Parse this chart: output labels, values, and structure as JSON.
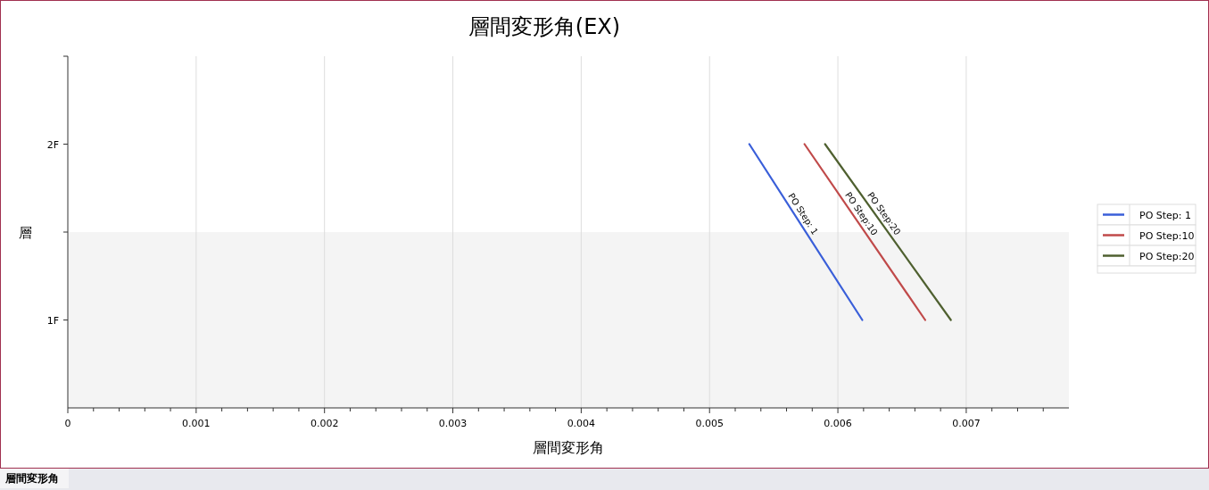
{
  "chart_data": {
    "type": "line",
    "title": "層間変形角(EX)",
    "xlabel": "層間変形角",
    "ylabel": "層",
    "xlim": [
      0,
      0.0078
    ],
    "xticks": [
      0,
      {
        "value": 0.0002,
        "label": null
      },
      {
        "value": 0.0004,
        "label": null
      },
      {
        "value": 0.0006,
        "label": null
      },
      {
        "value": 0.0008,
        "label": null
      },
      0.001,
      {
        "value": 0.0012,
        "label": null
      },
      {
        "value": 0.0014,
        "label": null
      },
      {
        "value": 0.0016,
        "label": null
      },
      {
        "value": 0.0018,
        "label": null
      },
      0.002,
      {
        "value": 0.0022,
        "label": null
      },
      {
        "value": 0.0024,
        "label": null
      },
      {
        "value": 0.0026,
        "label": null
      },
      {
        "value": 0.0028,
        "label": null
      },
      0.003,
      {
        "value": 0.0032,
        "label": null
      },
      {
        "value": 0.0034,
        "label": null
      },
      {
        "value": 0.0036,
        "label": null
      },
      {
        "value": 0.0038,
        "label": null
      },
      0.004,
      {
        "value": 0.0042,
        "label": null
      },
      {
        "value": 0.0044,
        "label": null
      },
      {
        "value": 0.0046,
        "label": null
      },
      {
        "value": 0.0048,
        "label": null
      },
      0.005,
      {
        "value": 0.0052,
        "label": null
      },
      {
        "value": 0.0054,
        "label": null
      },
      {
        "value": 0.0056,
        "label": null
      },
      {
        "value": 0.0058,
        "label": null
      },
      0.006,
      {
        "value": 0.0062,
        "label": null
      },
      {
        "value": 0.0064,
        "label": null
      },
      {
        "value": 0.0066,
        "label": null
      },
      {
        "value": 0.0068,
        "label": null
      },
      0.007,
      {
        "value": 0.0072,
        "label": null
      },
      {
        "value": 0.0074,
        "label": null
      },
      {
        "value": 0.0076,
        "label": null
      }
    ],
    "ylim": [
      0.5,
      2.5
    ],
    "yticks": [
      {
        "value": 1,
        "label": "1F"
      },
      {
        "value": 1.5,
        "label": null
      },
      {
        "value": 2,
        "label": "2F"
      },
      {
        "value": 2.5,
        "label": null
      }
    ],
    "grid": "x",
    "legend": "right",
    "marker": "none",
    "line_style": "solid",
    "bands": [
      {
        "axis": "y",
        "from": 0.5,
        "to": 1.5,
        "color": "#f4f4f4"
      }
    ],
    "series": [
      {
        "name": "PO Step: 1",
        "color": "#3a5fd9",
        "x": [
          0.00531,
          0.00619
        ],
        "values": [
          2,
          1
        ]
      },
      {
        "name": "PO Step:10",
        "color": "#c04a4a",
        "x": [
          0.00574,
          0.00668
        ],
        "values": [
          2,
          1
        ]
      },
      {
        "name": "PO Step:20",
        "color": "#4f6030",
        "x": [
          0.0059,
          0.00688
        ],
        "values": [
          2,
          1
        ]
      }
    ],
    "annotations": [
      "層間変形角"
    ]
  }
}
